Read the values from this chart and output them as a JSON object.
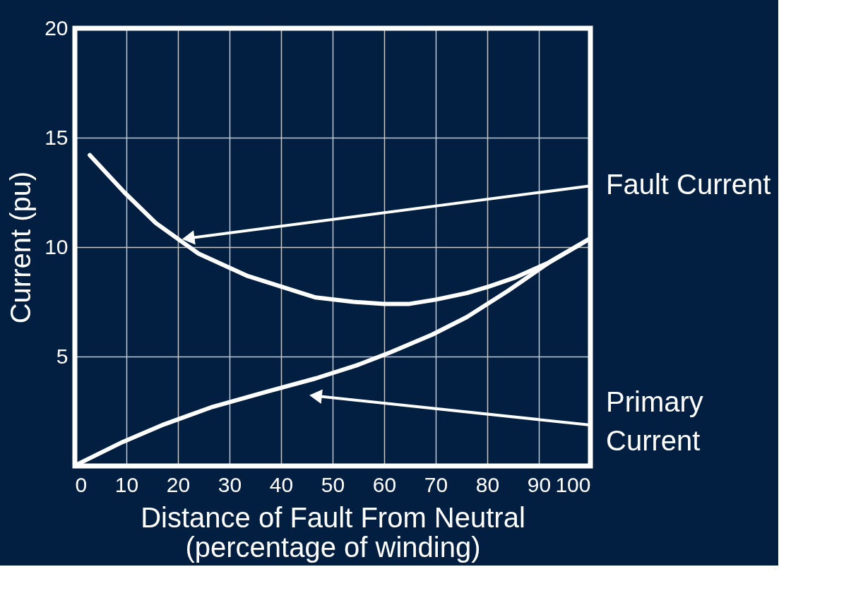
{
  "chart_data": {
    "type": "line",
    "xlabel": "Distance of Fault From Neutral\n(percentage of winding)",
    "ylabel": "Current (pu)",
    "xlim": [
      0,
      100
    ],
    "ylim": [
      0,
      20
    ],
    "xticks": [
      0,
      10,
      20,
      30,
      40,
      50,
      60,
      70,
      80,
      90,
      100
    ],
    "yticks": [
      5,
      10,
      15,
      20
    ],
    "grid": true,
    "marker": "none",
    "line_style": "solid",
    "series": [
      {
        "color": "#ffffff",
        "x": [
          2.9,
          9.6,
          15.7,
          24,
          33.3,
          40,
          46.7,
          54,
          60,
          64.7,
          70,
          76,
          80.3,
          85.3,
          92,
          100
        ],
        "values": [
          14.2,
          12.5,
          11.1,
          9.7,
          8.7,
          8.2,
          7.7,
          7.5,
          7.4,
          7.4,
          7.6,
          7.9,
          8.2,
          8.6,
          9.3,
          10.4
        ]
      },
      {
        "color": "#ffffff",
        "x": [
          0.7,
          9.3,
          17.3,
          26.7,
          37.3,
          46.7,
          54.7,
          61.3,
          69.3,
          76,
          84,
          92,
          100
        ],
        "values": [
          0.1,
          1.1,
          1.9,
          2.7,
          3.4,
          4.0,
          4.6,
          5.2,
          6.0,
          6.8,
          8.0,
          9.3,
          10.4
        ]
      }
    ],
    "annotations": [
      {
        "text": "Fault Current",
        "x": 22,
        "y": 10.4
      },
      {
        "text": "Primary\nCurrent",
        "x": 46.7,
        "y": 3.2
      }
    ]
  }
}
